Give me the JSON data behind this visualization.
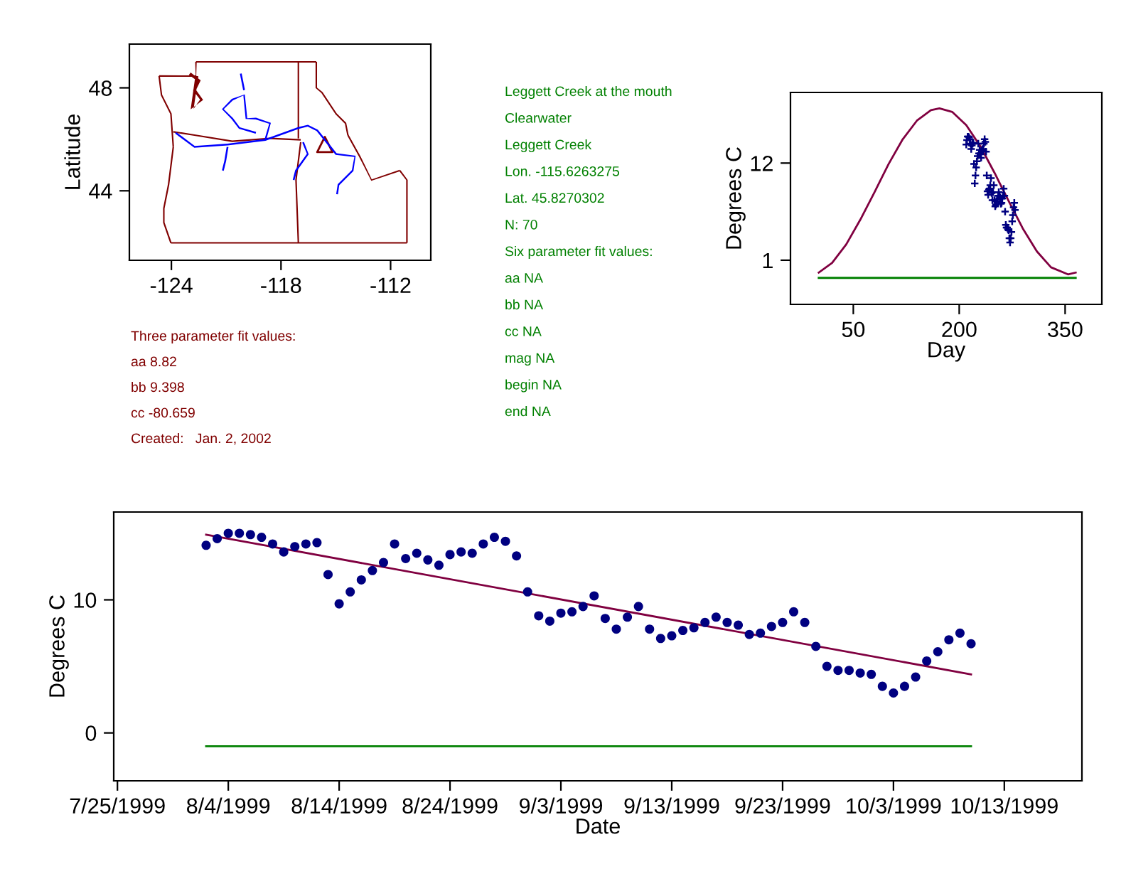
{
  "chart_data": [
    {
      "type": "scatter",
      "ylabel": "Latitude",
      "xlim": [
        -126.3,
        -109.8
      ],
      "ylim": [
        41.3,
        49.7
      ],
      "xticks": [
        {
          "value": -124,
          "label": "-124"
        },
        {
          "value": -118,
          "label": "-118"
        },
        {
          "value": -112,
          "label": "-112"
        }
      ],
      "yticks": [
        {
          "value": 44,
          "label": "44"
        },
        {
          "value": 48,
          "label": "48"
        }
      ],
      "series": [
        {
          "type": "scatter",
          "color": "#800000",
          "marker": "triangle",
          "x": [
            -115.6
          ],
          "values": [
            45.8
          ]
        }
      ]
    },
    {
      "type": "other",
      "color": "#800000",
      "annotations": [
        "Three parameter fit values:",
        "aa 8.82",
        "bb 9.398",
        "cc -80.659",
        "Created:   Jan. 2, 2002"
      ]
    },
    {
      "type": "other",
      "color": "#008000",
      "annotations": [
        "Leggett Creek at the mouth",
        "Clearwater",
        "Leggett Creek",
        "Lon. -115.6263275",
        "Lat. 45.8270302",
        "N: 70",
        "Six parameter fit values:",
        "aa NA",
        "bb NA",
        "cc NA",
        "mag NA",
        "begin NA",
        "end NA"
      ]
    },
    {
      "type": "line",
      "xlabel": "Day",
      "ylabel": "Degrees C",
      "xlim": [
        -39,
        402
      ],
      "ylim": [
        -4,
        20
      ],
      "xticks": [
        50,
        200,
        350
      ],
      "yticks": [
        1,
        12
      ],
      "grid": false,
      "series": [
        {
          "type": "line",
          "color": "#800040",
          "x": [
            1,
            20,
            40,
            60,
            80,
            100,
            120,
            140,
            160,
            172,
            190,
            210,
            230,
            250,
            270,
            290,
            310,
            330,
            354,
            365
          ],
          "values": [
            -0.4,
            0.7,
            2.8,
            5.6,
            8.7,
            11.9,
            14.7,
            16.8,
            18.0,
            18.2,
            17.8,
            16.3,
            13.9,
            10.9,
            7.7,
            4.6,
            2.0,
            0.2,
            -0.6,
            -0.4
          ]
        },
        {
          "type": "line",
          "color": "#008000",
          "x": [
            1,
            365
          ],
          "values": [
            -1,
            -1
          ]
        },
        {
          "type": "scatter",
          "color": "#000080",
          "marker": "cross",
          "x": [
            210,
            211,
            212,
            213,
            214,
            215,
            216,
            217,
            218,
            219,
            220,
            221,
            222,
            223,
            224,
            225,
            226,
            227,
            228,
            229,
            230,
            231,
            232,
            233,
            234,
            235,
            236,
            237,
            238,
            239,
            240,
            241,
            242,
            243,
            244,
            245,
            246,
            247,
            248,
            249,
            250,
            251,
            252,
            253,
            254,
            255,
            256,
            257,
            258,
            259,
            260,
            261,
            262,
            263,
            264,
            265,
            266,
            267,
            268,
            269,
            270,
            271,
            272,
            273,
            274,
            275,
            276,
            277,
            278,
            279
          ],
          "values": [
            14.1,
            14.6,
            15.0,
            15.0,
            14.9,
            14.7,
            14.2,
            13.6,
            14.0,
            14.2,
            14.3,
            11.9,
            9.7,
            10.6,
            11.5,
            12.2,
            12.8,
            14.2,
            13.1,
            13.5,
            13.0,
            12.6,
            13.4,
            13.6,
            13.5,
            14.2,
            14.7,
            14.4,
            13.3,
            10.6,
            8.8,
            8.4,
            9.0,
            9.1,
            9.5,
            10.3,
            8.6,
            7.8,
            8.7,
            9.5,
            7.8,
            7.1,
            7.3,
            7.7,
            7.9,
            8.3,
            8.7,
            8.3,
            8.1,
            7.4,
            7.5,
            8.0,
            8.3,
            9.1,
            8.3,
            6.5,
            5.0,
            4.7,
            4.7,
            4.5,
            4.4,
            3.5,
            3.0,
            3.5,
            4.2,
            5.4,
            6.1,
            7.0,
            7.5,
            6.7
          ]
        }
      ]
    },
    {
      "type": "scatter",
      "xlabel": "Date",
      "ylabel": "Degrees C",
      "xlim": [
        "1999-07-24T16:00",
        "1999-10-20"
      ],
      "ylim": [
        -3.6,
        16.6
      ],
      "grid": false,
      "xticks": [
        {
          "value": "1999-07-25",
          "label": "7/25/1999"
        },
        {
          "value": "1999-08-04",
          "label": "8/4/1999"
        },
        {
          "value": "1999-08-14",
          "label": "8/14/1999"
        },
        {
          "value": "1999-08-24",
          "label": "8/24/1999"
        },
        {
          "value": "1999-09-03",
          "label": "9/3/1999"
        },
        {
          "value": "1999-09-13",
          "label": "9/13/1999"
        },
        {
          "value": "1999-09-23",
          "label": "9/23/1999"
        },
        {
          "value": "1999-10-03",
          "label": "10/3/1999"
        },
        {
          "value": "1999-10-13",
          "label": "10/13/1999"
        }
      ],
      "yticks": [
        0,
        10
      ],
      "series": [
        {
          "type": "scatter",
          "color": "#000080",
          "marker": "circle",
          "x": [
            "1999-08-02",
            "1999-08-03",
            "1999-08-04",
            "1999-08-05",
            "1999-08-06",
            "1999-08-07",
            "1999-08-08",
            "1999-08-09",
            "1999-08-10",
            "1999-08-11",
            "1999-08-12",
            "1999-08-13",
            "1999-08-14",
            "1999-08-15",
            "1999-08-16",
            "1999-08-17",
            "1999-08-18",
            "1999-08-19",
            "1999-08-20",
            "1999-08-21",
            "1999-08-22",
            "1999-08-23",
            "1999-08-24",
            "1999-08-25",
            "1999-08-26",
            "1999-08-27",
            "1999-08-28",
            "1999-08-29",
            "1999-08-30",
            "1999-08-31",
            "1999-09-01",
            "1999-09-02",
            "1999-09-03",
            "1999-09-04",
            "1999-09-05",
            "1999-09-06",
            "1999-09-07",
            "1999-09-08",
            "1999-09-09",
            "1999-09-10",
            "1999-09-11",
            "1999-09-12",
            "1999-09-13",
            "1999-09-14",
            "1999-09-15",
            "1999-09-16",
            "1999-09-17",
            "1999-09-18",
            "1999-09-19",
            "1999-09-20",
            "1999-09-21",
            "1999-09-22",
            "1999-09-23",
            "1999-09-24",
            "1999-09-25",
            "1999-09-26",
            "1999-09-27",
            "1999-09-28",
            "1999-09-29",
            "1999-09-30",
            "1999-10-01",
            "1999-10-02",
            "1999-10-03",
            "1999-10-04",
            "1999-10-05",
            "1999-10-06",
            "1999-10-07",
            "1999-10-08",
            "1999-10-09",
            "1999-10-10"
          ],
          "values": [
            14.1,
            14.6,
            15.0,
            15.0,
            14.9,
            14.7,
            14.2,
            13.6,
            14.0,
            14.2,
            14.3,
            11.9,
            9.7,
            10.6,
            11.5,
            12.2,
            12.8,
            14.2,
            13.1,
            13.5,
            13.0,
            12.6,
            13.4,
            13.6,
            13.5,
            14.2,
            14.7,
            14.4,
            13.3,
            10.6,
            8.8,
            8.4,
            9.0,
            9.1,
            9.5,
            10.3,
            8.6,
            7.8,
            8.7,
            9.5,
            7.8,
            7.1,
            7.3,
            7.7,
            7.9,
            8.3,
            8.7,
            8.3,
            8.1,
            7.4,
            7.5,
            8.0,
            8.3,
            9.1,
            8.3,
            6.5,
            5.0,
            4.7,
            4.7,
            4.5,
            4.4,
            3.5,
            3.0,
            3.5,
            4.2,
            5.4,
            6.1,
            7.0,
            7.5,
            6.7
          ]
        },
        {
          "type": "line",
          "color": "#800040",
          "x": [
            "1999-08-02",
            "1999-10-10"
          ],
          "values": [
            14.9,
            4.4
          ]
        },
        {
          "type": "line",
          "color": "#008000",
          "x": [
            "1999-08-02",
            "1999-10-10"
          ],
          "values": [
            -1,
            -1
          ]
        }
      ]
    }
  ]
}
